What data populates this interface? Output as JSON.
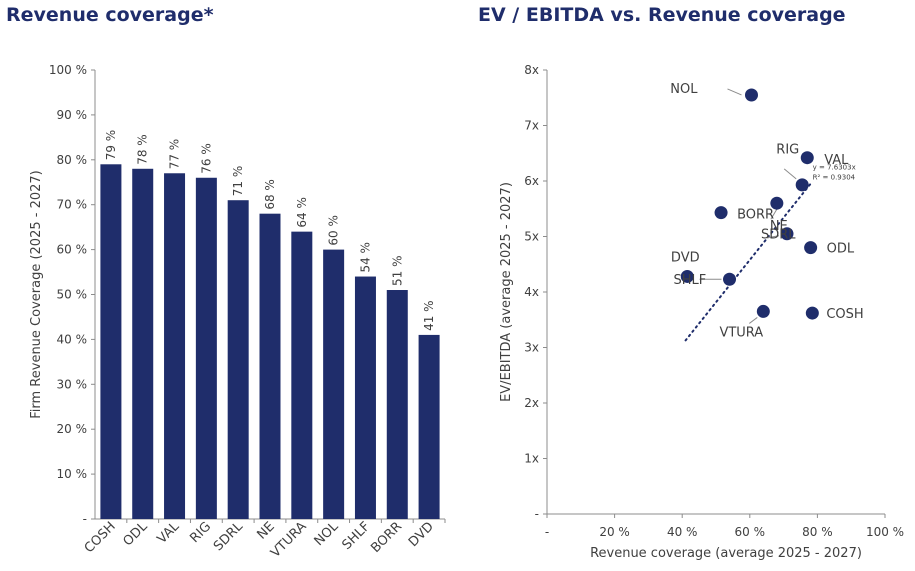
{
  "chart_data": [
    {
      "type": "bar",
      "title": "Revenue coverage*",
      "ylabel": "Firm Revenue Coverage (2025 - 2027)",
      "xlabel": "",
      "categories": [
        "COSH",
        "ODL",
        "VAL",
        "RIG",
        "SDRL",
        "NE",
        "VTURA",
        "NOL",
        "SHLF",
        "BORR",
        "DVD"
      ],
      "values": [
        79,
        78,
        77,
        76,
        71,
        68,
        64,
        60,
        54,
        51,
        41
      ],
      "data_labels": [
        "79 %",
        "78 %",
        "77 %",
        "76 %",
        "71 %",
        "68 %",
        "64 %",
        "60 %",
        "54 %",
        "51 %",
        "41 %"
      ],
      "yticks": [
        "-",
        "10 %",
        "20 %",
        "30 %",
        "40 %",
        "50 %",
        "60 %",
        "70 %",
        "80 %",
        "90 %",
        "100 %"
      ],
      "ylim": [
        0,
        100
      ],
      "grid": false,
      "color": "#1f2d6b"
    },
    {
      "type": "scatter",
      "title": "EV / EBITDA vs. Revenue coverage",
      "xlabel": "Revenue coverage (average 2025 - 2027)",
      "ylabel": "EV/EBITDA (average 2025 - 2027)",
      "xlim": [
        0,
        100
      ],
      "ylim": [
        0,
        8
      ],
      "xticks": [
        "-",
        "20 %",
        "40 %",
        "60 %",
        "80 %",
        "100 %"
      ],
      "yticks": [
        "-",
        "1x",
        "2x",
        "3x",
        "4x",
        "5x",
        "6x",
        "7x",
        "8x"
      ],
      "grid": false,
      "color": "#1f2d6b",
      "points": [
        {
          "label": "NOL",
          "x": 60.5,
          "y": 7.55
        },
        {
          "label": "RIG",
          "x": 77,
          "y": 6.42
        },
        {
          "label": "VAL",
          "x": 75.5,
          "y": 5.93
        },
        {
          "label": "NE",
          "x": 68,
          "y": 5.6
        },
        {
          "label": "BORR",
          "x": 51.5,
          "y": 5.43
        },
        {
          "label": "SDRL",
          "x": 71,
          "y": 5.05
        },
        {
          "label": "ODL",
          "x": 78,
          "y": 4.8
        },
        {
          "label": "DVD",
          "x": 41.5,
          "y": 4.28
        },
        {
          "label": "SHLF",
          "x": 54,
          "y": 4.23
        },
        {
          "label": "VTURA",
          "x": 64,
          "y": 3.65
        },
        {
          "label": "COSH",
          "x": 78.5,
          "y": 3.62
        }
      ],
      "trendline": {
        "style": "dotted",
        "x_range": [
          41,
          78
        ],
        "equation": "y = 7.6303x",
        "r_squared": "R² = 0.9304"
      }
    }
  ]
}
